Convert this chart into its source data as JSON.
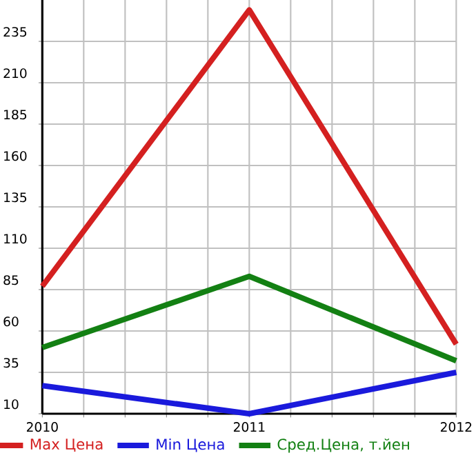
{
  "chart_data": {
    "type": "line",
    "x": [
      2010,
      2011,
      2012
    ],
    "series": [
      {
        "name": "Max Цена",
        "color": "#d42020",
        "values": [
          87,
          254,
          52
        ]
      },
      {
        "name": "Min Цена",
        "color": "#1a1adc",
        "values": [
          27,
          10,
          35
        ]
      },
      {
        "name": "Сред.Цена, т.йен",
        "color": "#138013",
        "values": [
          50,
          93,
          42
        ]
      }
    ],
    "xlim": [
      2010,
      2012
    ],
    "xticks": [
      2010,
      {
        "value": 2010.2,
        "label": null
      },
      {
        "value": 2010.4,
        "label": null
      },
      {
        "value": 2010.6,
        "label": null
      },
      {
        "value": 2010.8,
        "label": null
      },
      2011,
      {
        "value": 2011.2,
        "label": null
      },
      {
        "value": 2011.4,
        "label": null
      },
      {
        "value": 2011.6,
        "label": null
      },
      {
        "value": 2011.8,
        "label": null
      },
      2012
    ],
    "ylim": [
      10,
      260
    ],
    "yticks": [
      10,
      35,
      60,
      85,
      110,
      135,
      160,
      185,
      210,
      235
    ],
    "grid": true,
    "legend": "bottom",
    "marker": "none",
    "line_style": "solid"
  }
}
